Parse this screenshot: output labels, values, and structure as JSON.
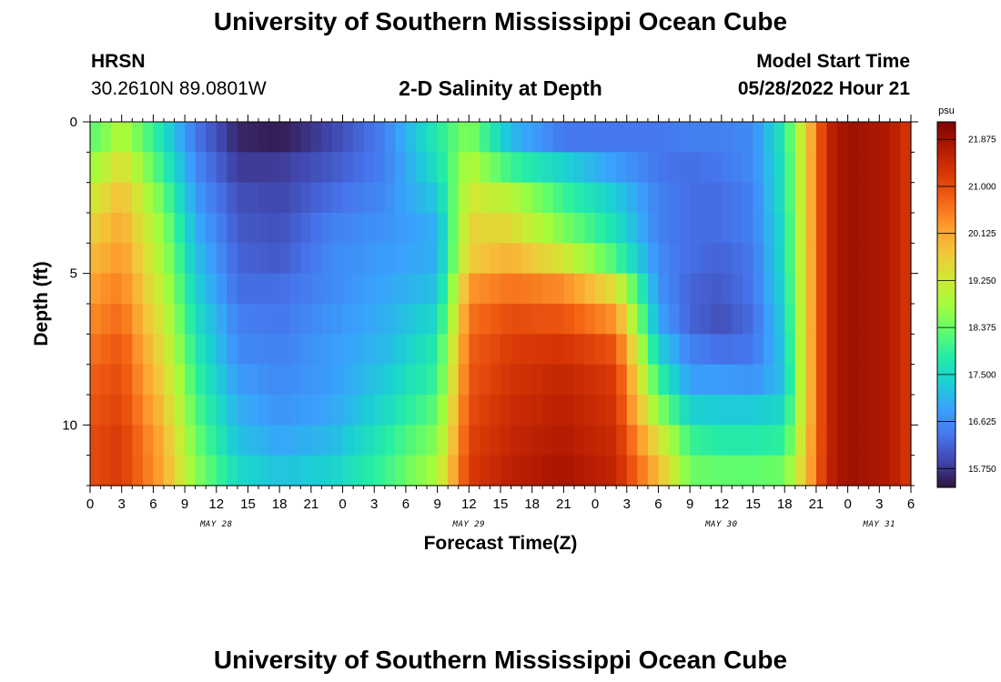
{
  "header": {
    "title": "University of Southern Mississippi Ocean Cube",
    "station": "HRSN",
    "coords": "30.2610N  89.0801W",
    "subtitle": "2-D Salinity at Depth",
    "model_label": "Model Start Time",
    "model_time": "05/28/2022 Hour 21"
  },
  "footer": {
    "title": "University of Southern Mississippi Ocean Cube"
  },
  "colors": {
    "palette": [
      "#30123b",
      "#4145ab",
      "#4675ed",
      "#39a2fc",
      "#1bcfd4",
      "#24eca6",
      "#61fc6c",
      "#a4fc3b",
      "#d1e834",
      "#f3c63a",
      "#fe9b2d",
      "#f36315",
      "#d93806",
      "#b11901",
      "#7a0403"
    ]
  },
  "chart_data": {
    "type": "heatmap",
    "title": "2-D Salinity at Depth",
    "xlabel": "Forecast Time(Z)",
    "ylabel": "Depth (ft)",
    "x_tick_labels": [
      "0",
      "3",
      "6",
      "9",
      "12",
      "15",
      "18",
      "21",
      "0",
      "3",
      "6",
      "9",
      "12",
      "15",
      "18",
      "21",
      "0",
      "3",
      "6",
      "9",
      "12",
      "15",
      "18",
      "21",
      "0",
      "3",
      "6"
    ],
    "x_range_hours": [
      0,
      78
    ],
    "day_labels": [
      {
        "label": "MAY 28",
        "hour": 12
      },
      {
        "label": "MAY 29",
        "hour": 36
      },
      {
        "label": "MAY 30",
        "hour": 60
      },
      {
        "label": "MAY 31",
        "hour": 75
      }
    ],
    "y_range_ft": [
      0,
      12
    ],
    "y_tick_labels": [
      {
        "label": "0",
        "value": 0
      },
      {
        "label": "5",
        "value": 5
      },
      {
        "label": "10",
        "value": 10
      }
    ],
    "colorbar": {
      "unit": "psu",
      "min": 15.4,
      "max": 22.2,
      "labels": [
        "21.875",
        "21.000",
        "20.125",
        "19.250",
        "18.375",
        "17.500",
        "16.625",
        "15.750"
      ]
    },
    "columns": 78,
    "rows": 12,
    "salinity_psu_keyframes": {
      "hours": [
        0,
        3,
        7,
        10,
        14,
        18,
        23,
        28,
        33,
        36,
        40,
        45,
        50,
        54,
        57,
        60,
        63,
        66,
        68,
        70,
        72,
        76,
        78
      ],
      "rows": [
        [
          18.2,
          19.0,
          17.6,
          16.4,
          15.6,
          15.5,
          15.9,
          16.5,
          17.8,
          18.6,
          17.1,
          16.4,
          16.4,
          16.4,
          16.5,
          16.5,
          16.6,
          17.8,
          19.6,
          21.5,
          21.9,
          21.7,
          21.2
        ],
        [
          18.7,
          19.5,
          17.9,
          16.6,
          15.8,
          15.8,
          16.1,
          16.5,
          17.6,
          19.0,
          18.0,
          17.4,
          16.8,
          16.4,
          16.3,
          16.4,
          16.6,
          17.7,
          19.6,
          21.5,
          21.9,
          21.7,
          21.2
        ],
        [
          19.2,
          19.9,
          18.3,
          16.8,
          16.0,
          15.9,
          16.3,
          16.6,
          17.3,
          19.3,
          19.0,
          18.0,
          17.3,
          16.5,
          16.3,
          16.3,
          16.5,
          17.7,
          19.6,
          21.5,
          21.9,
          21.7,
          21.2
        ],
        [
          19.6,
          20.1,
          18.6,
          17.0,
          16.1,
          16.0,
          16.5,
          16.7,
          17.0,
          19.6,
          19.5,
          18.5,
          17.6,
          16.5,
          16.3,
          16.3,
          16.5,
          17.6,
          19.6,
          21.5,
          21.9,
          21.7,
          21.2
        ],
        [
          19.9,
          20.3,
          18.8,
          17.2,
          16.2,
          16.1,
          16.6,
          16.8,
          17.0,
          19.7,
          20.0,
          19.3,
          18.1,
          16.6,
          16.3,
          16.2,
          16.4,
          17.6,
          19.6,
          21.5,
          21.9,
          21.7,
          21.2
        ],
        [
          20.2,
          20.5,
          19.0,
          17.4,
          16.3,
          16.3,
          16.6,
          16.9,
          17.2,
          20.3,
          20.6,
          20.4,
          19.4,
          16.7,
          16.2,
          16.1,
          16.4,
          17.5,
          19.6,
          21.5,
          21.9,
          21.7,
          21.2
        ],
        [
          20.4,
          20.7,
          19.2,
          17.6,
          16.5,
          16.4,
          16.7,
          17.0,
          17.5,
          20.6,
          21.0,
          20.9,
          20.3,
          16.9,
          16.2,
          16.0,
          16.3,
          17.4,
          19.6,
          21.5,
          21.9,
          21.7,
          21.2
        ],
        [
          20.6,
          20.9,
          19.4,
          17.8,
          16.6,
          16.5,
          16.8,
          17.1,
          17.8,
          20.8,
          21.2,
          21.3,
          20.9,
          17.4,
          16.5,
          16.3,
          16.4,
          17.3,
          19.6,
          21.5,
          21.9,
          21.7,
          21.2
        ],
        [
          20.8,
          21.0,
          19.6,
          18.0,
          16.8,
          16.6,
          16.8,
          17.3,
          18.0,
          20.9,
          21.3,
          21.5,
          21.2,
          18.0,
          16.8,
          16.8,
          16.7,
          17.2,
          19.6,
          21.5,
          21.9,
          21.7,
          21.2
        ],
        [
          20.9,
          21.1,
          19.8,
          18.2,
          17.0,
          16.7,
          16.9,
          17.5,
          18.3,
          21.0,
          21.4,
          21.6,
          21.3,
          18.6,
          17.4,
          17.3,
          17.3,
          17.5,
          19.6,
          21.5,
          21.9,
          21.7,
          21.2
        ],
        [
          21.0,
          21.2,
          20.0,
          18.4,
          17.2,
          16.9,
          17.1,
          17.8,
          18.6,
          21.1,
          21.5,
          21.7,
          21.4,
          19.4,
          18.0,
          17.8,
          17.8,
          17.9,
          19.7,
          21.5,
          21.9,
          21.7,
          21.2
        ],
        [
          21.0,
          21.2,
          20.1,
          18.6,
          17.5,
          17.2,
          17.4,
          18.0,
          18.9,
          21.2,
          21.6,
          21.8,
          21.5,
          19.9,
          18.4,
          18.3,
          18.3,
          18.4,
          19.8,
          21.5,
          21.9,
          21.7,
          21.2
        ]
      ]
    }
  }
}
